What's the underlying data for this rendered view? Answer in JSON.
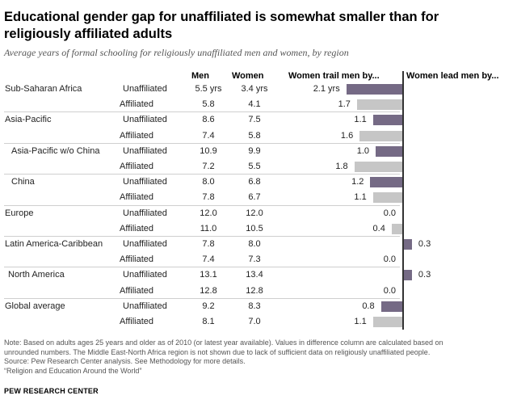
{
  "title": "Educational gender gap for unaffiliated is somewhat smaller than for religiously affiliated adults",
  "subtitle": "Average years of formal schooling for religiously unaffiliated men and women, by region",
  "headers": {
    "men": "Men",
    "women": "Women",
    "trail": "Women trail men by...",
    "lead": "Women lead men by..."
  },
  "colors": {
    "unaffiliated_bar": "#756a85",
    "affiliated_bar": "#c6c6c6",
    "axis": "#333333"
  },
  "chart_data": {
    "type": "bar",
    "title": "Educational gender gap for unaffiliated is somewhat smaller than for religiously affiliated adults",
    "subtitle": "Average years of formal schooling for religiously unaffiliated men and women, by region",
    "columns": [
      "Men",
      "Women",
      "Women trail men by...",
      "Women lead men by..."
    ],
    "series": [
      {
        "name": "Unaffiliated"
      },
      {
        "name": "Affiliated"
      }
    ],
    "regions": [
      {
        "name": "Sub-Saharan Africa",
        "rows": [
          {
            "group": "Unaffiliated",
            "men": "5.5 yrs",
            "women": "3.4 yrs",
            "gap": -2.1,
            "gap_label": "2.1 yrs"
          },
          {
            "group": "Affiliated",
            "men": "5.8",
            "women": "4.1",
            "gap": -1.7,
            "gap_label": "1.7"
          }
        ]
      },
      {
        "name": "Asia-Pacific",
        "rows": [
          {
            "group": "Unaffiliated",
            "men": "8.6",
            "women": "7.5",
            "gap": -1.1,
            "gap_label": "1.1"
          },
          {
            "group": "Affiliated",
            "men": "7.4",
            "women": "5.8",
            "gap": -1.6,
            "gap_label": "1.6"
          }
        ]
      },
      {
        "name": "Asia-Pacific w/o China",
        "rows": [
          {
            "group": "Unaffiliated",
            "men": "10.9",
            "women": "9.9",
            "gap": -1.0,
            "gap_label": "1.0"
          },
          {
            "group": "Affiliated",
            "men": "7.2",
            "women": "5.5",
            "gap": -1.8,
            "gap_label": "1.8"
          }
        ]
      },
      {
        "name": "China",
        "rows": [
          {
            "group": "Unaffiliated",
            "men": "8.0",
            "women": "6.8",
            "gap": -1.2,
            "gap_label": "1.2"
          },
          {
            "group": "Affiliated",
            "men": "7.8",
            "women": "6.7",
            "gap": -1.1,
            "gap_label": "1.1"
          }
        ]
      },
      {
        "name": "Europe",
        "rows": [
          {
            "group": "Unaffiliated",
            "men": "12.0",
            "women": "12.0",
            "gap": 0.0,
            "gap_label": "0.0"
          },
          {
            "group": "Affiliated",
            "men": "11.0",
            "women": "10.5",
            "gap": -0.4,
            "gap_label": "0.4"
          }
        ]
      },
      {
        "name": "Latin America-Caribbean",
        "rows": [
          {
            "group": "Unaffiliated",
            "men": "7.8",
            "women": "8.0",
            "gap": 0.3,
            "gap_label": "0.3"
          },
          {
            "group": "Affiliated",
            "men": "7.4",
            "women": "7.3",
            "gap": 0.0,
            "gap_label": "0.0"
          }
        ]
      },
      {
        "name": "North America",
        "rows": [
          {
            "group": "Unaffiliated",
            "men": "13.1",
            "women": "13.4",
            "gap": 0.3,
            "gap_label": "0.3"
          },
          {
            "group": "Affiliated",
            "men": "12.8",
            "women": "12.8",
            "gap": 0.0,
            "gap_label": "0.0"
          }
        ]
      },
      {
        "name": "Global average",
        "rows": [
          {
            "group": "Unaffiliated",
            "men": "9.2",
            "women": "8.3",
            "gap": -0.8,
            "gap_label": "0.8"
          },
          {
            "group": "Affiliated",
            "men": "8.1",
            "women": "7.0",
            "gap": -1.1,
            "gap_label": "1.1"
          }
        ]
      }
    ]
  },
  "notes": [
    "Note: Based on adults ages 25 years and older as of 2010 (or latest year available). Values in difference column are calculated based on",
    "unrounded numbers. The Middle East-North Africa region is not shown due to lack of sufficient data on religiously unaffiliated people.",
    "Source: Pew Research Center analysis. See Methodology for more details.",
    "“Religion and Education Around the World”"
  ],
  "footer": "PEW RESEARCH CENTER"
}
